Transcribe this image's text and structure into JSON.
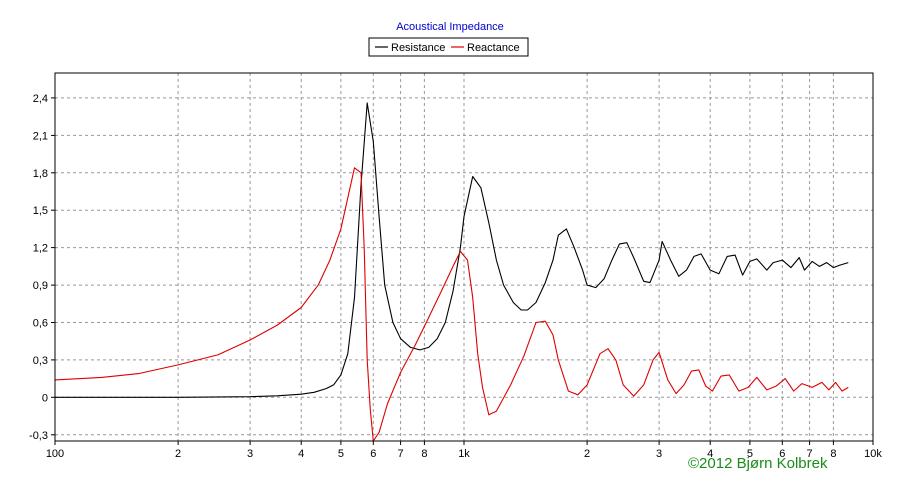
{
  "chart_data": {
    "type": "line",
    "title": "Acoustical Impedance",
    "xscale": "log",
    "xlim": [
      100,
      10000
    ],
    "ylim": [
      -0.35,
      2.6
    ],
    "grid": true,
    "legend_position": "top-center",
    "y_ticks": [
      {
        "value": 2.4,
        "label": "2,4"
      },
      {
        "value": 2.1,
        "label": "2,1"
      },
      {
        "value": 1.8,
        "label": "1,8"
      },
      {
        "value": 1.5,
        "label": "1,5"
      },
      {
        "value": 1.2,
        "label": "1,2"
      },
      {
        "value": 0.9,
        "label": "0,9"
      },
      {
        "value": 0.6,
        "label": "0,6"
      },
      {
        "value": 0.3,
        "label": "0,3"
      },
      {
        "value": 0,
        "label": "0"
      },
      {
        "value": -0.3,
        "label": "-0,3"
      }
    ],
    "x_ticks": [
      {
        "value": 100,
        "label": "100"
      },
      {
        "value": 200,
        "label": "2"
      },
      {
        "value": 300,
        "label": "3"
      },
      {
        "value": 400,
        "label": "4"
      },
      {
        "value": 500,
        "label": "5"
      },
      {
        "value": 600,
        "label": "6"
      },
      {
        "value": 700,
        "label": "7"
      },
      {
        "value": 800,
        "label": "8"
      },
      {
        "value": 1000,
        "label": "1k"
      },
      {
        "value": 2000,
        "label": "2"
      },
      {
        "value": 3000,
        "label": "3"
      },
      {
        "value": 4000,
        "label": "4"
      },
      {
        "value": 5000,
        "label": "5"
      },
      {
        "value": 6000,
        "label": "6"
      },
      {
        "value": 7000,
        "label": "7"
      },
      {
        "value": 8000,
        "label": "8"
      },
      {
        "value": 10000,
        "label": "10k"
      }
    ],
    "x_gridlines": [
      200,
      300,
      400,
      500,
      600,
      700,
      800,
      1000,
      2000,
      3000,
      4000,
      5000,
      6000,
      7000,
      8000
    ],
    "series": [
      {
        "name": "Resistance",
        "color": "#000000",
        "points": [
          [
            100,
            0
          ],
          [
            200,
            0
          ],
          [
            300,
            0.005
          ],
          [
            350,
            0.012
          ],
          [
            400,
            0.025
          ],
          [
            430,
            0.04
          ],
          [
            460,
            0.07
          ],
          [
            480,
            0.1
          ],
          [
            500,
            0.18
          ],
          [
            520,
            0.35
          ],
          [
            540,
            0.8
          ],
          [
            560,
            1.7
          ],
          [
            580,
            2.36
          ],
          [
            600,
            2.05
          ],
          [
            620,
            1.45
          ],
          [
            640,
            0.9
          ],
          [
            670,
            0.6
          ],
          [
            700,
            0.47
          ],
          [
            740,
            0.4
          ],
          [
            780,
            0.38
          ],
          [
            820,
            0.4
          ],
          [
            860,
            0.47
          ],
          [
            900,
            0.6
          ],
          [
            940,
            0.85
          ],
          [
            980,
            1.2
          ],
          [
            1000,
            1.45
          ],
          [
            1050,
            1.77
          ],
          [
            1100,
            1.68
          ],
          [
            1150,
            1.4
          ],
          [
            1200,
            1.1
          ],
          [
            1250,
            0.9
          ],
          [
            1320,
            0.76
          ],
          [
            1380,
            0.7
          ],
          [
            1430,
            0.7
          ],
          [
            1500,
            0.76
          ],
          [
            1580,
            0.92
          ],
          [
            1650,
            1.1
          ],
          [
            1700,
            1.3
          ],
          [
            1780,
            1.35
          ],
          [
            1860,
            1.2
          ],
          [
            1950,
            1.02
          ],
          [
            2000,
            0.9
          ],
          [
            2100,
            0.88
          ],
          [
            2200,
            0.95
          ],
          [
            2300,
            1.1
          ],
          [
            2400,
            1.23
          ],
          [
            2500,
            1.24
          ],
          [
            2600,
            1.12
          ],
          [
            2750,
            0.93
          ],
          [
            2850,
            0.92
          ],
          [
            3000,
            1.1
          ],
          [
            3050,
            1.25
          ],
          [
            3200,
            1.1
          ],
          [
            3350,
            0.97
          ],
          [
            3500,
            1.02
          ],
          [
            3650,
            1.13
          ],
          [
            3800,
            1.15
          ],
          [
            4000,
            1.02
          ],
          [
            4200,
            0.99
          ],
          [
            4400,
            1.13
          ],
          [
            4600,
            1.14
          ],
          [
            4800,
            0.98
          ],
          [
            5000,
            1.09
          ],
          [
            5200,
            1.11
          ],
          [
            5500,
            1.02
          ],
          [
            5700,
            1.08
          ],
          [
            6000,
            1.1
          ],
          [
            6300,
            1.04
          ],
          [
            6600,
            1.12
          ],
          [
            6800,
            1.02
          ],
          [
            7100,
            1.09
          ],
          [
            7400,
            1.05
          ],
          [
            7700,
            1.08
          ],
          [
            8000,
            1.04
          ],
          [
            8300,
            1.06
          ],
          [
            8700,
            1.08
          ]
        ]
      },
      {
        "name": "Reactance",
        "color": "#dd0000",
        "points": [
          [
            100,
            0.14
          ],
          [
            130,
            0.16
          ],
          [
            160,
            0.19
          ],
          [
            200,
            0.26
          ],
          [
            250,
            0.34
          ],
          [
            300,
            0.46
          ],
          [
            350,
            0.58
          ],
          [
            400,
            0.72
          ],
          [
            440,
            0.9
          ],
          [
            470,
            1.1
          ],
          [
            500,
            1.35
          ],
          [
            520,
            1.6
          ],
          [
            540,
            1.84
          ],
          [
            560,
            1.8
          ],
          [
            570,
            1.2
          ],
          [
            580,
            0.3
          ],
          [
            590,
            -0.1
          ],
          [
            600,
            -0.35
          ],
          [
            620,
            -0.28
          ],
          [
            650,
            -0.05
          ],
          [
            700,
            0.2
          ],
          [
            760,
            0.42
          ],
          [
            820,
            0.64
          ],
          [
            880,
            0.85
          ],
          [
            940,
            1.05
          ],
          [
            980,
            1.17
          ],
          [
            1020,
            1.1
          ],
          [
            1050,
            0.8
          ],
          [
            1080,
            0.35
          ],
          [
            1110,
            0.08
          ],
          [
            1150,
            -0.14
          ],
          [
            1200,
            -0.11
          ],
          [
            1300,
            0.1
          ],
          [
            1400,
            0.33
          ],
          [
            1500,
            0.6
          ],
          [
            1580,
            0.61
          ],
          [
            1650,
            0.5
          ],
          [
            1700,
            0.3
          ],
          [
            1800,
            0.05
          ],
          [
            1900,
            0.02
          ],
          [
            2000,
            0.1
          ],
          [
            2150,
            0.35
          ],
          [
            2250,
            0.39
          ],
          [
            2350,
            0.3
          ],
          [
            2450,
            0.1
          ],
          [
            2600,
            0.01
          ],
          [
            2750,
            0.1
          ],
          [
            2900,
            0.3
          ],
          [
            3000,
            0.36
          ],
          [
            3150,
            0.14
          ],
          [
            3300,
            0.03
          ],
          [
            3450,
            0.1
          ],
          [
            3600,
            0.21
          ],
          [
            3750,
            0.22
          ],
          [
            3900,
            0.09
          ],
          [
            4050,
            0.05
          ],
          [
            4250,
            0.17
          ],
          [
            4450,
            0.18
          ],
          [
            4700,
            0.05
          ],
          [
            4950,
            0.08
          ],
          [
            5200,
            0.16
          ],
          [
            5500,
            0.06
          ],
          [
            5800,
            0.09
          ],
          [
            6100,
            0.15
          ],
          [
            6400,
            0.05
          ],
          [
            6700,
            0.11
          ],
          [
            7100,
            0.08
          ],
          [
            7500,
            0.12
          ],
          [
            7800,
            0.06
          ],
          [
            8100,
            0.12
          ],
          [
            8400,
            0.05
          ],
          [
            8700,
            0.08
          ]
        ]
      }
    ]
  },
  "copyright": "©2012 Bjørn Kolbrek"
}
